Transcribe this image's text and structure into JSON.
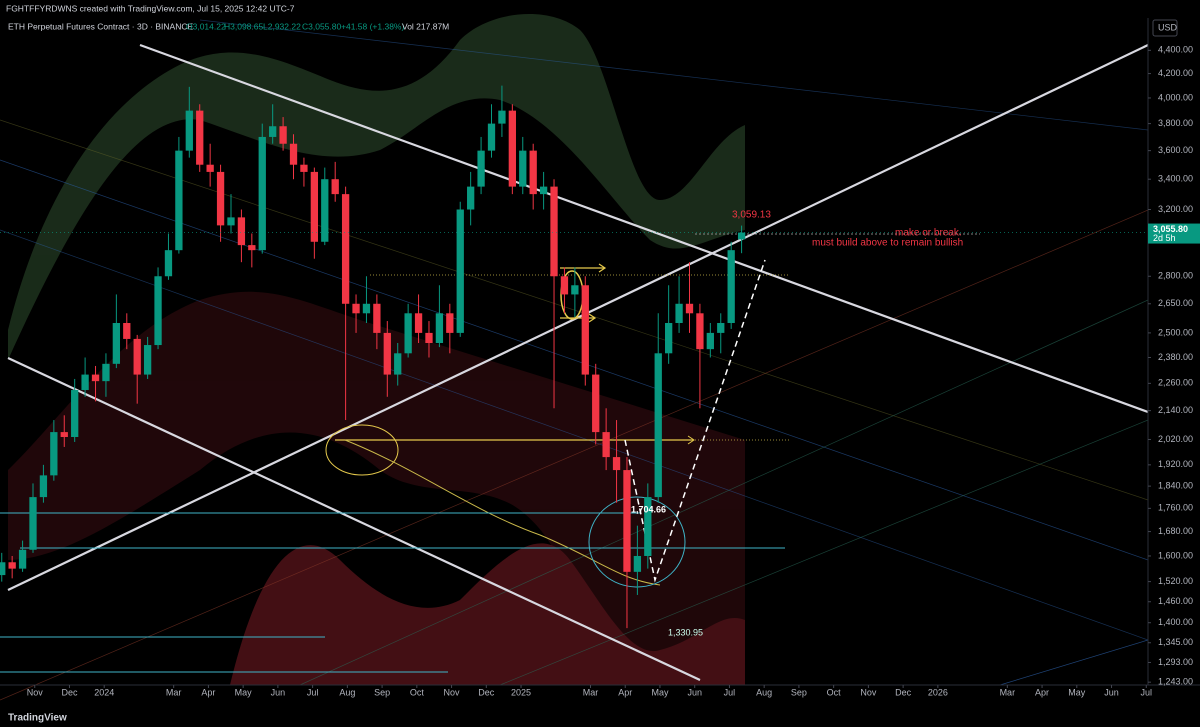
{
  "credit": "FGHTFFYRDWNS created with TradingView.com, Jul 15, 2025 12:42 UTC-7",
  "chart_data": {
    "type": "candlestick",
    "title": "ETH Perpetual Futures Contract · 3D · BINANCE",
    "ohlc_header": [
      "O3,014.22",
      "H3,098.65",
      "L2,932.22",
      "C3,055.80",
      "+41.58 (+1.38%)",
      "Vol 217.87M"
    ],
    "currency": "USD",
    "last_price_label": "3,055.80",
    "countdown": "2d 5h",
    "annotations": [
      "3,059.13",
      "make or break.",
      "must build above to remain bullish",
      "1,704.66",
      "1,330.95"
    ],
    "up_color": "#089981",
    "down_color": "#f23645",
    "log_scale": true,
    "grid": false,
    "x": [
      -2.95,
      -2.65,
      -2.35,
      -2.05,
      -1.75,
      -1.45,
      -1.15,
      -0.85,
      -0.55,
      -0.25,
      0.05,
      0.35,
      0.65,
      0.95,
      1.25,
      1.55,
      1.85,
      2.15,
      2.45,
      2.75,
      3.05,
      3.35,
      3.65,
      3.95,
      4.25,
      4.55,
      4.85,
      5.15,
      5.45,
      5.75,
      6.05,
      6.35,
      6.65,
      6.95,
      7.25,
      7.55,
      7.85,
      8.15,
      8.45,
      8.75,
      9.05,
      9.35,
      9.65,
      9.95,
      10.25,
      10.55,
      10.85,
      11.15,
      11.45,
      11.75,
      12.05,
      12.35,
      12.65,
      12.95,
      13.25,
      13.55,
      13.85,
      14.15,
      14.45,
      14.75,
      15.05,
      15.35,
      15.65,
      15.95,
      16.25,
      16.55,
      16.85,
      17.15,
      17.45,
      17.75,
      18.05,
      18.35
    ],
    "open": [
      1540,
      1580,
      1560,
      1620,
      1800,
      1880,
      2050,
      2030,
      2230,
      2300,
      2270,
      2350,
      2550,
      2470,
      2300,
      2440,
      2800,
      2950,
      3600,
      3900,
      3500,
      3450,
      3100,
      3150,
      2980,
      2950,
      3700,
      3780,
      3650,
      3500,
      3450,
      3000,
      3400,
      3300,
      2650,
      2600,
      2650,
      2500,
      2300,
      2400,
      2600,
      2500,
      2450,
      2600,
      2500,
      3200,
      3350,
      3600,
      3800,
      3900,
      3350,
      3600,
      3300,
      3350,
      2800,
      2700,
      2750,
      2300,
      2050,
      1950,
      1900,
      1550,
      1600,
      1800,
      2400,
      2550,
      2650,
      2600,
      2420,
      2500,
      2550,
      3014.22
    ],
    "high": [
      1610,
      1600,
      1650,
      1850,
      1920,
      2100,
      2120,
      2280,
      2380,
      2340,
      2400,
      2700,
      2600,
      2490,
      2480,
      2850,
      3050,
      3700,
      4090,
      3950,
      3650,
      3500,
      3300,
      3200,
      3050,
      3800,
      3950,
      3850,
      3720,
      3550,
      3480,
      3480,
      3520,
      3350,
      2700,
      2800,
      2700,
      2560,
      2450,
      2650,
      2700,
      2560,
      2750,
      2650,
      3250,
      3450,
      3700,
      3950,
      4100,
      3950,
      3700,
      3650,
      3450,
      3400,
      2850,
      2850,
      2800,
      2350,
      2150,
      2100,
      1950,
      1700,
      1850,
      2600,
      2750,
      2800,
      2880,
      2650,
      2550,
      2600,
      3000,
      3098.65
    ],
    "low": [
      1520,
      1530,
      1550,
      1610,
      1780,
      1860,
      1990,
      2010,
      2200,
      2180,
      2200,
      2330,
      2420,
      2170,
      2280,
      2420,
      2780,
      2930,
      3550,
      3450,
      3350,
      3000,
      3050,
      2880,
      2850,
      2930,
      3650,
      3600,
      3400,
      3350,
      2900,
      2980,
      3250,
      2100,
      2500,
      2550,
      2420,
      2200,
      2250,
      2380,
      2450,
      2380,
      2430,
      2400,
      2480,
      3100,
      3300,
      3550,
      3700,
      3300,
      3300,
      3200,
      3200,
      2150,
      2600,
      2580,
      2250,
      2000,
      1900,
      1780,
      1385,
      1480,
      1560,
      1780,
      2350,
      2500,
      2500,
      2150,
      2380,
      2400,
      2520,
      2932.22
    ],
    "close": [
      1580,
      1560,
      1620,
      1800,
      1880,
      2050,
      2030,
      2230,
      2300,
      2270,
      2350,
      2550,
      2470,
      2300,
      2440,
      2800,
      2950,
      3600,
      3900,
      3500,
      3450,
      3100,
      3150,
      2980,
      2950,
      3700,
      3780,
      3650,
      3500,
      3450,
      3000,
      3400,
      3300,
      2650,
      2600,
      2650,
      2500,
      2300,
      2400,
      2600,
      2500,
      2450,
      2600,
      2500,
      3200,
      3350,
      3600,
      3800,
      3900,
      3350,
      3600,
      3300,
      3350,
      2800,
      2700,
      2750,
      2300,
      2050,
      1950,
      1900,
      1550,
      1600,
      1800,
      2400,
      2550,
      2650,
      2600,
      2420,
      2500,
      2550,
      2950,
      3055.8
    ],
    "xlim": [
      -3,
      30.05
    ],
    "xticks": [
      {
        "value": -2,
        "label": "Nov"
      },
      {
        "value": -1,
        "label": "Dec"
      },
      {
        "value": 0,
        "label": "2024"
      },
      {
        "value": 2,
        "label": "Mar"
      },
      {
        "value": 3,
        "label": "Apr"
      },
      {
        "value": 4,
        "label": "May"
      },
      {
        "value": 5,
        "label": "Jun"
      },
      {
        "value": 6,
        "label": "Jul"
      },
      {
        "value": 7,
        "label": "Aug"
      },
      {
        "value": 8,
        "label": "Sep"
      },
      {
        "value": 9,
        "label": "Oct"
      },
      {
        "value": 10,
        "label": "Nov"
      },
      {
        "value": 11,
        "label": "Dec"
      },
      {
        "value": 12,
        "label": "2025"
      },
      {
        "value": 14,
        "label": "Mar"
      },
      {
        "value": 15,
        "label": "Apr"
      },
      {
        "value": 16,
        "label": "May"
      },
      {
        "value": 17,
        "label": "Jun"
      },
      {
        "value": 18,
        "label": "Jul"
      },
      {
        "value": 19,
        "label": "Aug"
      },
      {
        "value": 20,
        "label": "Sep"
      },
      {
        "value": 21,
        "label": "Oct"
      },
      {
        "value": 22,
        "label": "Nov"
      },
      {
        "value": 23,
        "label": "Dec"
      },
      {
        "value": 24,
        "label": "2026"
      },
      {
        "value": 26,
        "label": "Mar"
      },
      {
        "value": 27,
        "label": "Apr"
      },
      {
        "value": 28,
        "label": "May"
      },
      {
        "value": 29,
        "label": "Jun"
      },
      {
        "value": 30,
        "label": "Jul"
      }
    ],
    "ylim": [
      1236,
      4694
    ],
    "yticks": [
      {
        "value": 4400,
        "label": "4,400.00"
      },
      {
        "value": 4200,
        "label": "4,200.00"
      },
      {
        "value": 4000,
        "label": "4,000.00"
      },
      {
        "value": 3800,
        "label": "3,800.00"
      },
      {
        "value": 3600,
        "label": "3,600.00"
      },
      {
        "value": 3400,
        "label": "3,400.00"
      },
      {
        "value": 3200,
        "label": "3,200.00"
      },
      {
        "value": 2800,
        "label": "2,800.00"
      },
      {
        "value": 2650,
        "label": "2,650.00"
      },
      {
        "value": 2500,
        "label": "2,500.00"
      },
      {
        "value": 2380,
        "label": "2,380.00"
      },
      {
        "value": 2260,
        "label": "2,260.00"
      },
      {
        "value": 2140,
        "label": "2,140.00"
      },
      {
        "value": 2020,
        "label": "2,020.00"
      },
      {
        "value": 1920,
        "label": "1,920.00"
      },
      {
        "value": 1840,
        "label": "1,840.00"
      },
      {
        "value": 1760,
        "label": "1,760.00"
      },
      {
        "value": 1680,
        "label": "1,680.00"
      },
      {
        "value": 1600,
        "label": "1,600.00"
      },
      {
        "value": 1520,
        "label": "1,520.00"
      },
      {
        "value": 1460,
        "label": "1,460.00"
      },
      {
        "value": 1400,
        "label": "1,400.00"
      },
      {
        "value": 1345,
        "label": "1,345.00"
      },
      {
        "value": 1293,
        "label": "1,293.00"
      },
      {
        "value": 1243,
        "label": "1,243.00"
      }
    ]
  },
  "footer": "TradingView"
}
